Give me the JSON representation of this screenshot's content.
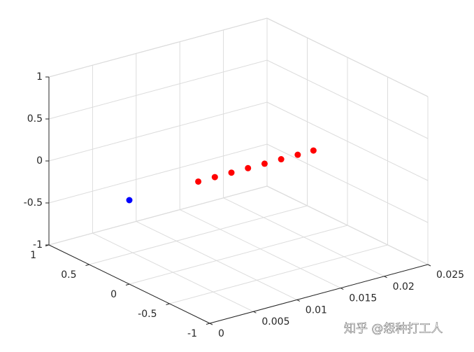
{
  "chart_data": {
    "type": "scatter3d",
    "series": [
      {
        "color": "#0000ff",
        "x": [
          0
        ],
        "y": [
          0
        ],
        "z": [
          0
        ]
      },
      {
        "color": "#ff0000",
        "x": [
          0.0079,
          0.0098,
          0.0117,
          0.0136,
          0.0155,
          0.0174,
          0.0193,
          0.0211
        ],
        "y": [
          0,
          0,
          0,
          0,
          0,
          0,
          0,
          0
        ],
        "z": [
          0,
          0,
          0,
          0,
          0,
          0,
          0,
          0
        ]
      }
    ],
    "xlim": [
      0,
      0.025
    ],
    "xticks": [
      0,
      0.005,
      0.01,
      0.015,
      0.02,
      0.025
    ],
    "ylim": [
      -1,
      1
    ],
    "yticks": [
      -1,
      -0.5,
      0,
      0.5,
      1
    ],
    "zlim": [
      -1,
      1
    ],
    "zticks": [
      -1,
      -0.5,
      0,
      0.5,
      1
    ],
    "grid": true,
    "watermark": "知乎 @怨种打工人"
  }
}
